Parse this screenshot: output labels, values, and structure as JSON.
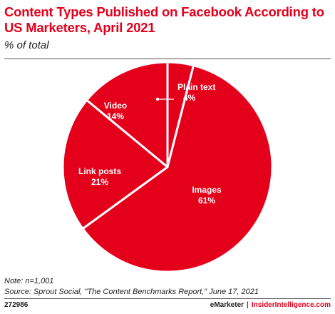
{
  "header": {
    "title": "Content Types Published on Facebook According to US Marketers, April 2021",
    "subtitle": "% of total"
  },
  "chart_data": {
    "type": "pie",
    "title": "Content Types Published on Facebook According to US Marketers, April 2021",
    "subtitle": "% of total",
    "start": "12 o'clock, clockwise",
    "slices": [
      {
        "label": "Plain text",
        "value": 4,
        "value_label": "4%"
      },
      {
        "label": "Images",
        "value": 61,
        "value_label": "61%"
      },
      {
        "label": "Link posts",
        "value": 21,
        "value_label": "21%"
      },
      {
        "label": "Video",
        "value": 14,
        "value_label": "14%"
      }
    ],
    "colors": {
      "slice": "#e4001b",
      "separator": "#ffffff"
    }
  },
  "footer": {
    "note": "Note: n=1,001",
    "source": "Source: Sprout Social, \"The Content Benchmarks Report,\" June 17, 2021",
    "chart_id": "272986",
    "brand_emarketer": "eMarketer",
    "brand_separator": "|",
    "brand_ii": "InsiderIntelligence.com"
  }
}
